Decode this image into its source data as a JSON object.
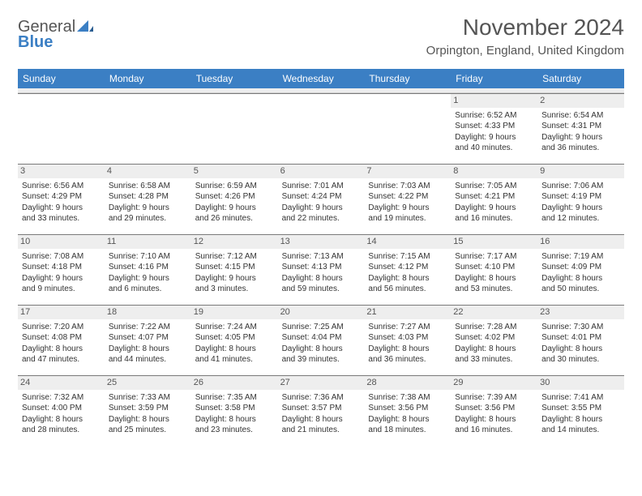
{
  "logo": {
    "line1": "General",
    "line2": "Blue"
  },
  "title": "November 2024",
  "location": "Orpington, England, United Kingdom",
  "colors": {
    "header_bg": "#3b7fc4",
    "header_text": "#ffffff",
    "daynum_bg": "#eeeeee",
    "text": "#333333",
    "rule": "#7a7a7a"
  },
  "day_names": [
    "Sunday",
    "Monday",
    "Tuesday",
    "Wednesday",
    "Thursday",
    "Friday",
    "Saturday"
  ],
  "weeks": [
    [
      {
        "n": "",
        "sr": "",
        "ss": "",
        "dl1": "",
        "dl2": ""
      },
      {
        "n": "",
        "sr": "",
        "ss": "",
        "dl1": "",
        "dl2": ""
      },
      {
        "n": "",
        "sr": "",
        "ss": "",
        "dl1": "",
        "dl2": ""
      },
      {
        "n": "",
        "sr": "",
        "ss": "",
        "dl1": "",
        "dl2": ""
      },
      {
        "n": "",
        "sr": "",
        "ss": "",
        "dl1": "",
        "dl2": ""
      },
      {
        "n": "1",
        "sr": "Sunrise: 6:52 AM",
        "ss": "Sunset: 4:33 PM",
        "dl1": "Daylight: 9 hours",
        "dl2": "and 40 minutes."
      },
      {
        "n": "2",
        "sr": "Sunrise: 6:54 AM",
        "ss": "Sunset: 4:31 PM",
        "dl1": "Daylight: 9 hours",
        "dl2": "and 36 minutes."
      }
    ],
    [
      {
        "n": "3",
        "sr": "Sunrise: 6:56 AM",
        "ss": "Sunset: 4:29 PM",
        "dl1": "Daylight: 9 hours",
        "dl2": "and 33 minutes."
      },
      {
        "n": "4",
        "sr": "Sunrise: 6:58 AM",
        "ss": "Sunset: 4:28 PM",
        "dl1": "Daylight: 9 hours",
        "dl2": "and 29 minutes."
      },
      {
        "n": "5",
        "sr": "Sunrise: 6:59 AM",
        "ss": "Sunset: 4:26 PM",
        "dl1": "Daylight: 9 hours",
        "dl2": "and 26 minutes."
      },
      {
        "n": "6",
        "sr": "Sunrise: 7:01 AM",
        "ss": "Sunset: 4:24 PM",
        "dl1": "Daylight: 9 hours",
        "dl2": "and 22 minutes."
      },
      {
        "n": "7",
        "sr": "Sunrise: 7:03 AM",
        "ss": "Sunset: 4:22 PM",
        "dl1": "Daylight: 9 hours",
        "dl2": "and 19 minutes."
      },
      {
        "n": "8",
        "sr": "Sunrise: 7:05 AM",
        "ss": "Sunset: 4:21 PM",
        "dl1": "Daylight: 9 hours",
        "dl2": "and 16 minutes."
      },
      {
        "n": "9",
        "sr": "Sunrise: 7:06 AM",
        "ss": "Sunset: 4:19 PM",
        "dl1": "Daylight: 9 hours",
        "dl2": "and 12 minutes."
      }
    ],
    [
      {
        "n": "10",
        "sr": "Sunrise: 7:08 AM",
        "ss": "Sunset: 4:18 PM",
        "dl1": "Daylight: 9 hours",
        "dl2": "and 9 minutes."
      },
      {
        "n": "11",
        "sr": "Sunrise: 7:10 AM",
        "ss": "Sunset: 4:16 PM",
        "dl1": "Daylight: 9 hours",
        "dl2": "and 6 minutes."
      },
      {
        "n": "12",
        "sr": "Sunrise: 7:12 AM",
        "ss": "Sunset: 4:15 PM",
        "dl1": "Daylight: 9 hours",
        "dl2": "and 3 minutes."
      },
      {
        "n": "13",
        "sr": "Sunrise: 7:13 AM",
        "ss": "Sunset: 4:13 PM",
        "dl1": "Daylight: 8 hours",
        "dl2": "and 59 minutes."
      },
      {
        "n": "14",
        "sr": "Sunrise: 7:15 AM",
        "ss": "Sunset: 4:12 PM",
        "dl1": "Daylight: 8 hours",
        "dl2": "and 56 minutes."
      },
      {
        "n": "15",
        "sr": "Sunrise: 7:17 AM",
        "ss": "Sunset: 4:10 PM",
        "dl1": "Daylight: 8 hours",
        "dl2": "and 53 minutes."
      },
      {
        "n": "16",
        "sr": "Sunrise: 7:19 AM",
        "ss": "Sunset: 4:09 PM",
        "dl1": "Daylight: 8 hours",
        "dl2": "and 50 minutes."
      }
    ],
    [
      {
        "n": "17",
        "sr": "Sunrise: 7:20 AM",
        "ss": "Sunset: 4:08 PM",
        "dl1": "Daylight: 8 hours",
        "dl2": "and 47 minutes."
      },
      {
        "n": "18",
        "sr": "Sunrise: 7:22 AM",
        "ss": "Sunset: 4:07 PM",
        "dl1": "Daylight: 8 hours",
        "dl2": "and 44 minutes."
      },
      {
        "n": "19",
        "sr": "Sunrise: 7:24 AM",
        "ss": "Sunset: 4:05 PM",
        "dl1": "Daylight: 8 hours",
        "dl2": "and 41 minutes."
      },
      {
        "n": "20",
        "sr": "Sunrise: 7:25 AM",
        "ss": "Sunset: 4:04 PM",
        "dl1": "Daylight: 8 hours",
        "dl2": "and 39 minutes."
      },
      {
        "n": "21",
        "sr": "Sunrise: 7:27 AM",
        "ss": "Sunset: 4:03 PM",
        "dl1": "Daylight: 8 hours",
        "dl2": "and 36 minutes."
      },
      {
        "n": "22",
        "sr": "Sunrise: 7:28 AM",
        "ss": "Sunset: 4:02 PM",
        "dl1": "Daylight: 8 hours",
        "dl2": "and 33 minutes."
      },
      {
        "n": "23",
        "sr": "Sunrise: 7:30 AM",
        "ss": "Sunset: 4:01 PM",
        "dl1": "Daylight: 8 hours",
        "dl2": "and 30 minutes."
      }
    ],
    [
      {
        "n": "24",
        "sr": "Sunrise: 7:32 AM",
        "ss": "Sunset: 4:00 PM",
        "dl1": "Daylight: 8 hours",
        "dl2": "and 28 minutes."
      },
      {
        "n": "25",
        "sr": "Sunrise: 7:33 AM",
        "ss": "Sunset: 3:59 PM",
        "dl1": "Daylight: 8 hours",
        "dl2": "and 25 minutes."
      },
      {
        "n": "26",
        "sr": "Sunrise: 7:35 AM",
        "ss": "Sunset: 3:58 PM",
        "dl1": "Daylight: 8 hours",
        "dl2": "and 23 minutes."
      },
      {
        "n": "27",
        "sr": "Sunrise: 7:36 AM",
        "ss": "Sunset: 3:57 PM",
        "dl1": "Daylight: 8 hours",
        "dl2": "and 21 minutes."
      },
      {
        "n": "28",
        "sr": "Sunrise: 7:38 AM",
        "ss": "Sunset: 3:56 PM",
        "dl1": "Daylight: 8 hours",
        "dl2": "and 18 minutes."
      },
      {
        "n": "29",
        "sr": "Sunrise: 7:39 AM",
        "ss": "Sunset: 3:56 PM",
        "dl1": "Daylight: 8 hours",
        "dl2": "and 16 minutes."
      },
      {
        "n": "30",
        "sr": "Sunrise: 7:41 AM",
        "ss": "Sunset: 3:55 PM",
        "dl1": "Daylight: 8 hours",
        "dl2": "and 14 minutes."
      }
    ]
  ]
}
